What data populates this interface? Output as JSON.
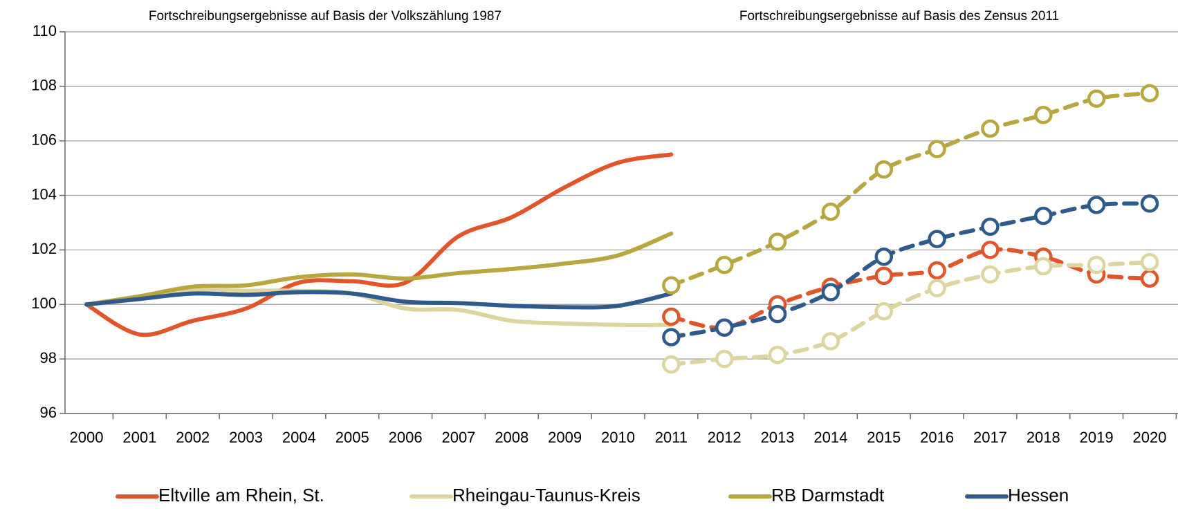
{
  "chart_data": {
    "type": "line",
    "annotations": [
      "Fortschreibungsergebnisse auf Basis der Volkszählung 1987",
      "Fortschreibungsergebnisse auf Basis des Zensus 2011"
    ],
    "categories": [
      "2000",
      "2001",
      "2002",
      "2003",
      "2004",
      "2005",
      "2006",
      "2007",
      "2008",
      "2009",
      "2010",
      "2011",
      "2012",
      "2013",
      "2014",
      "2015",
      "2016",
      "2017",
      "2018",
      "2019",
      "2020"
    ],
    "ylim": [
      96,
      110
    ],
    "yticks": [
      96,
      98,
      100,
      102,
      104,
      106,
      108,
      110
    ],
    "grid": true,
    "series": [
      {
        "name": "Eltville am Rhein, St.",
        "color": "#e0552a",
        "values": [
          100,
          98.9,
          99.4,
          99.85,
          100.8,
          100.85,
          100.8,
          102.5,
          103.2,
          104.3,
          105.2,
          105.5,
          null,
          null,
          null,
          null,
          null,
          null,
          null,
          null,
          null
        ],
        "zensus_values": [
          null,
          null,
          null,
          null,
          null,
          null,
          null,
          null,
          null,
          null,
          null,
          99.55,
          99.15,
          100.0,
          100.65,
          101.05,
          101.25,
          102.0,
          101.75,
          101.1,
          100.95
        ]
      },
      {
        "name": "Rheingau-Taunus-Kreis",
        "color": "#ddd5a0",
        "values": [
          100,
          100.2,
          100.5,
          100.5,
          100.5,
          100.4,
          99.85,
          99.8,
          99.4,
          99.3,
          99.25,
          99.25,
          null,
          null,
          null,
          null,
          null,
          null,
          null,
          null,
          null
        ],
        "zensus_values": [
          null,
          null,
          null,
          null,
          null,
          null,
          null,
          null,
          null,
          null,
          null,
          97.8,
          98.0,
          98.15,
          98.65,
          99.75,
          100.6,
          101.1,
          101.4,
          101.45,
          101.55
        ]
      },
      {
        "name": "RB Darmstadt",
        "color": "#b8a640",
        "values": [
          100,
          100.3,
          100.65,
          100.7,
          101.0,
          101.1,
          100.95,
          101.15,
          101.3,
          101.5,
          101.8,
          102.6,
          null,
          null,
          null,
          null,
          null,
          null,
          null,
          null,
          null
        ],
        "zensus_values": [
          null,
          null,
          null,
          null,
          null,
          null,
          null,
          null,
          null,
          null,
          null,
          100.7,
          101.45,
          102.3,
          103.4,
          104.95,
          105.7,
          106.45,
          106.95,
          107.55,
          107.75
        ]
      },
      {
        "name": "Hessen",
        "color": "#2e5a8c",
        "values": [
          100,
          100.2,
          100.4,
          100.35,
          100.45,
          100.4,
          100.1,
          100.05,
          99.95,
          99.9,
          99.95,
          100.4,
          null,
          null,
          null,
          null,
          null,
          null,
          null,
          null,
          null
        ],
        "zensus_values": [
          null,
          null,
          null,
          null,
          null,
          null,
          null,
          null,
          null,
          null,
          null,
          98.8,
          99.15,
          99.65,
          100.45,
          101.75,
          102.4,
          102.85,
          103.25,
          103.65,
          103.7
        ]
      }
    ]
  }
}
